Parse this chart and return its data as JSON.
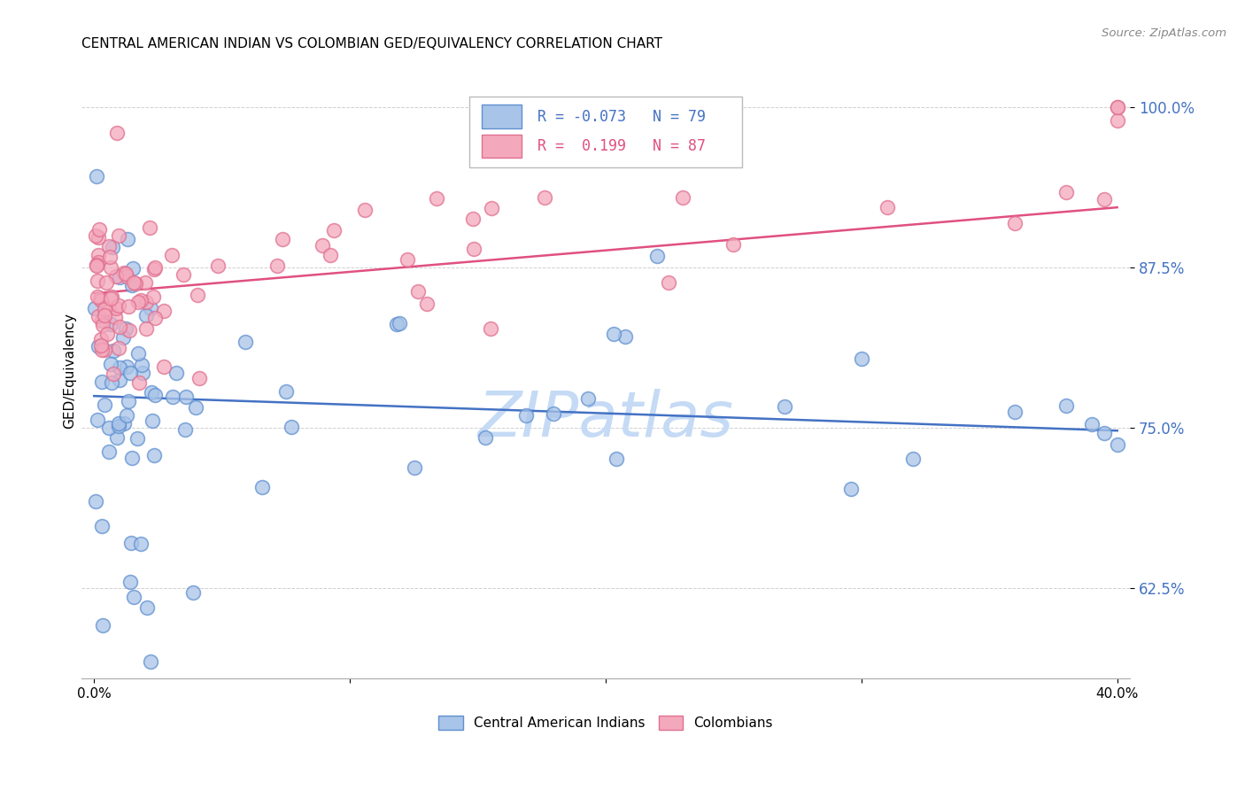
{
  "title": "CENTRAL AMERICAN INDIAN VS COLOMBIAN GED/EQUIVALENCY CORRELATION CHART",
  "source": "Source: ZipAtlas.com",
  "ylabel": "GED/Equivalency",
  "xlim": [
    -0.005,
    0.405
  ],
  "ylim": [
    0.555,
    1.035
  ],
  "yticks": [
    0.625,
    0.75,
    0.875,
    1.0
  ],
  "ytick_labels": [
    "62.5%",
    "75.0%",
    "87.5%",
    "100.0%"
  ],
  "xticks": [
    0.0,
    0.1,
    0.2,
    0.3,
    0.4
  ],
  "xtick_labels": [
    "0.0%",
    "",
    "",
    "",
    "40.0%"
  ],
  "legend_r_blue": "-0.073",
  "legend_n_blue": "79",
  "legend_r_pink": "0.199",
  "legend_n_pink": "87",
  "blue_color": "#a8c4e8",
  "pink_color": "#f4a8bc",
  "blue_edge_color": "#6090d0",
  "pink_edge_color": "#e07090",
  "blue_line_color": "#4472c4",
  "pink_line_color": "#e05080",
  "watermark_color": "#c5daf5",
  "blue_line_y0": 0.775,
  "blue_line_y1": 0.748,
  "pink_line_y0": 0.855,
  "pink_line_y1": 0.922,
  "n_blue": 79,
  "n_pink": 87
}
